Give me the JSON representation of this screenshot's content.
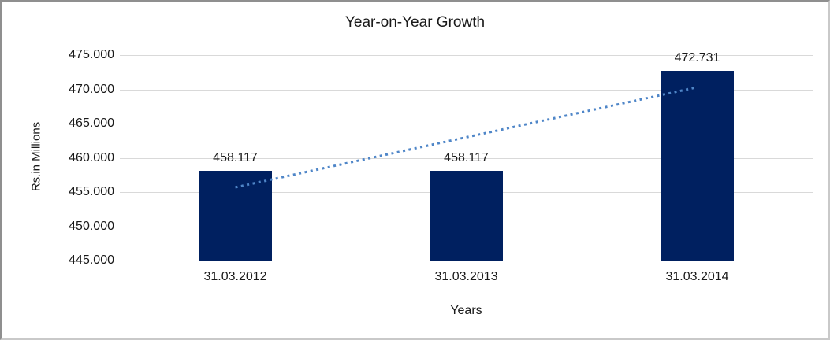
{
  "chart_data": {
    "type": "bar",
    "title": "Year-on-Year Growth",
    "xlabel": "Years",
    "ylabel": "Rs.in Millions",
    "categories": [
      "31.03.2012",
      "31.03.2013",
      "31.03.2014"
    ],
    "values": [
      458.117,
      458.117,
      472.731
    ],
    "value_labels": [
      "458.117",
      "458.117",
      "472.731"
    ],
    "ylim": [
      445,
      475
    ],
    "ytick_step": 5,
    "ytick_labels": [
      "445.000",
      "450.000",
      "455.000",
      "460.000",
      "465.000",
      "470.000",
      "475.000"
    ],
    "grid": "horizontal-only",
    "legend": "none",
    "colors": {
      "bar": "#002060",
      "gridline": "#d9d9d9",
      "trendline": "#4f86c8",
      "text": "#1a1a1a",
      "background": "#ffffff"
    },
    "trendline": {
      "style": "dotted",
      "start_category_index": 0,
      "end_category_index": 2,
      "start_value": 455.69,
      "end_value": 470.31
    }
  }
}
